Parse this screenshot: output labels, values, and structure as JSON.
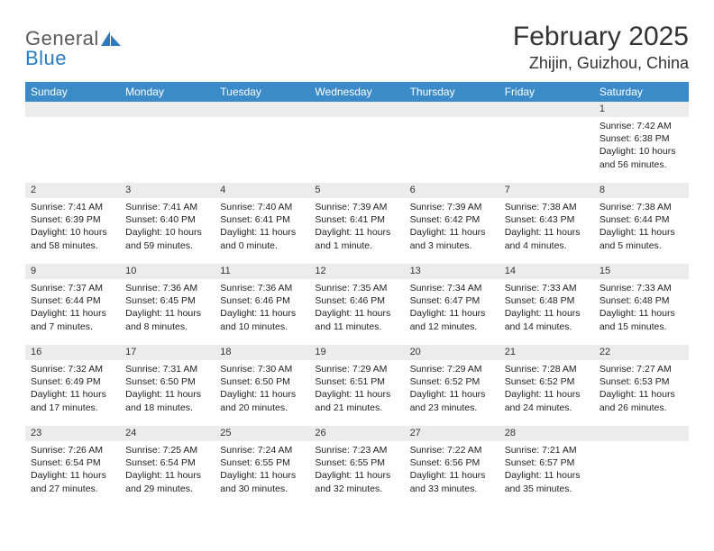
{
  "logo": {
    "textA": "General",
    "textB": "Blue"
  },
  "title": "February 2025",
  "location": "Zhijin, Guizhou, China",
  "header_bg": "#3b8bc9",
  "sep_color": "#2b7bbf",
  "daynum_bg": "#ececec",
  "weekdays": [
    "Sunday",
    "Monday",
    "Tuesday",
    "Wednesday",
    "Thursday",
    "Friday",
    "Saturday"
  ],
  "weeks": [
    [
      null,
      null,
      null,
      null,
      null,
      null,
      {
        "n": "1",
        "sr": "7:42 AM",
        "ss": "6:38 PM",
        "dl": "10 hours and 56 minutes."
      }
    ],
    [
      {
        "n": "2",
        "sr": "7:41 AM",
        "ss": "6:39 PM",
        "dl": "10 hours and 58 minutes."
      },
      {
        "n": "3",
        "sr": "7:41 AM",
        "ss": "6:40 PM",
        "dl": "10 hours and 59 minutes."
      },
      {
        "n": "4",
        "sr": "7:40 AM",
        "ss": "6:41 PM",
        "dl": "11 hours and 0 minute."
      },
      {
        "n": "5",
        "sr": "7:39 AM",
        "ss": "6:41 PM",
        "dl": "11 hours and 1 minute."
      },
      {
        "n": "6",
        "sr": "7:39 AM",
        "ss": "6:42 PM",
        "dl": "11 hours and 3 minutes."
      },
      {
        "n": "7",
        "sr": "7:38 AM",
        "ss": "6:43 PM",
        "dl": "11 hours and 4 minutes."
      },
      {
        "n": "8",
        "sr": "7:38 AM",
        "ss": "6:44 PM",
        "dl": "11 hours and 5 minutes."
      }
    ],
    [
      {
        "n": "9",
        "sr": "7:37 AM",
        "ss": "6:44 PM",
        "dl": "11 hours and 7 minutes."
      },
      {
        "n": "10",
        "sr": "7:36 AM",
        "ss": "6:45 PM",
        "dl": "11 hours and 8 minutes."
      },
      {
        "n": "11",
        "sr": "7:36 AM",
        "ss": "6:46 PM",
        "dl": "11 hours and 10 minutes."
      },
      {
        "n": "12",
        "sr": "7:35 AM",
        "ss": "6:46 PM",
        "dl": "11 hours and 11 minutes."
      },
      {
        "n": "13",
        "sr": "7:34 AM",
        "ss": "6:47 PM",
        "dl": "11 hours and 12 minutes."
      },
      {
        "n": "14",
        "sr": "7:33 AM",
        "ss": "6:48 PM",
        "dl": "11 hours and 14 minutes."
      },
      {
        "n": "15",
        "sr": "7:33 AM",
        "ss": "6:48 PM",
        "dl": "11 hours and 15 minutes."
      }
    ],
    [
      {
        "n": "16",
        "sr": "7:32 AM",
        "ss": "6:49 PM",
        "dl": "11 hours and 17 minutes."
      },
      {
        "n": "17",
        "sr": "7:31 AM",
        "ss": "6:50 PM",
        "dl": "11 hours and 18 minutes."
      },
      {
        "n": "18",
        "sr": "7:30 AM",
        "ss": "6:50 PM",
        "dl": "11 hours and 20 minutes."
      },
      {
        "n": "19",
        "sr": "7:29 AM",
        "ss": "6:51 PM",
        "dl": "11 hours and 21 minutes."
      },
      {
        "n": "20",
        "sr": "7:29 AM",
        "ss": "6:52 PM",
        "dl": "11 hours and 23 minutes."
      },
      {
        "n": "21",
        "sr": "7:28 AM",
        "ss": "6:52 PM",
        "dl": "11 hours and 24 minutes."
      },
      {
        "n": "22",
        "sr": "7:27 AM",
        "ss": "6:53 PM",
        "dl": "11 hours and 26 minutes."
      }
    ],
    [
      {
        "n": "23",
        "sr": "7:26 AM",
        "ss": "6:54 PM",
        "dl": "11 hours and 27 minutes."
      },
      {
        "n": "24",
        "sr": "7:25 AM",
        "ss": "6:54 PM",
        "dl": "11 hours and 29 minutes."
      },
      {
        "n": "25",
        "sr": "7:24 AM",
        "ss": "6:55 PM",
        "dl": "11 hours and 30 minutes."
      },
      {
        "n": "26",
        "sr": "7:23 AM",
        "ss": "6:55 PM",
        "dl": "11 hours and 32 minutes."
      },
      {
        "n": "27",
        "sr": "7:22 AM",
        "ss": "6:56 PM",
        "dl": "11 hours and 33 minutes."
      },
      {
        "n": "28",
        "sr": "7:21 AM",
        "ss": "6:57 PM",
        "dl": "11 hours and 35 minutes."
      },
      null
    ]
  ],
  "labels": {
    "sunrise": "Sunrise:",
    "sunset": "Sunset:",
    "daylight": "Daylight:"
  }
}
